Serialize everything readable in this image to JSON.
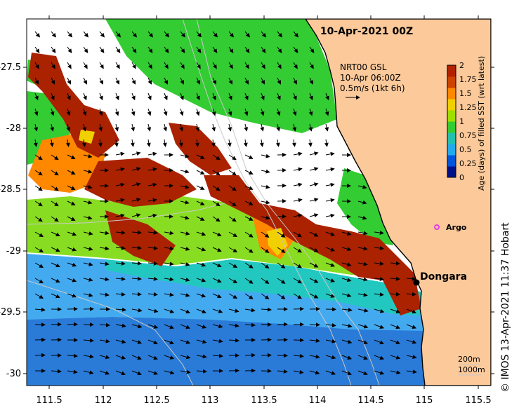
{
  "title": "10-Apr-2021 00Z",
  "credit": "© IMOS 13-Apr-2021 11:37 Hobart",
  "current_legend": {
    "line1": "NRT00 GSL",
    "line2": "10-Apr 06:00Z",
    "line3": "0.5m/s (1kt 6h)"
  },
  "colorbar": {
    "label": "Age (days) of filled SST (wrt latest)",
    "ticks": [
      "2",
      "1.75",
      "1.5",
      "1.25",
      "1",
      "0.75",
      "0.5",
      "0.25",
      "0"
    ],
    "colors": [
      "#b22200",
      "#cc4400",
      "#ff8800",
      "#f0d000",
      "#9fe000",
      "#33cc33",
      "#22c0b0",
      "#22aaee",
      "#0055dd",
      "#001188"
    ]
  },
  "places": {
    "dongara": "Dongara",
    "argo": "Argo"
  },
  "isobaths": {
    "shallow": "200m",
    "deep": "1000m"
  },
  "axes": {
    "x_ticks": [
      "111.5",
      "112",
      "112.5",
      "113",
      "113.5",
      "114",
      "114.5",
      "115",
      "115.5"
    ],
    "y_ticks": [
      "-27.5",
      "-28",
      "-28.5",
      "-29",
      "-29.5",
      "-30"
    ]
  },
  "colors": {
    "land": "#fbc99a",
    "deep_blue": "#2a7bd8",
    "light_blue": "#44aaf0",
    "teal": "#22c8c0",
    "green": "#33cc33",
    "light_green": "#88dd22",
    "red": "#aa2200",
    "orange": "#ff8800"
  }
}
